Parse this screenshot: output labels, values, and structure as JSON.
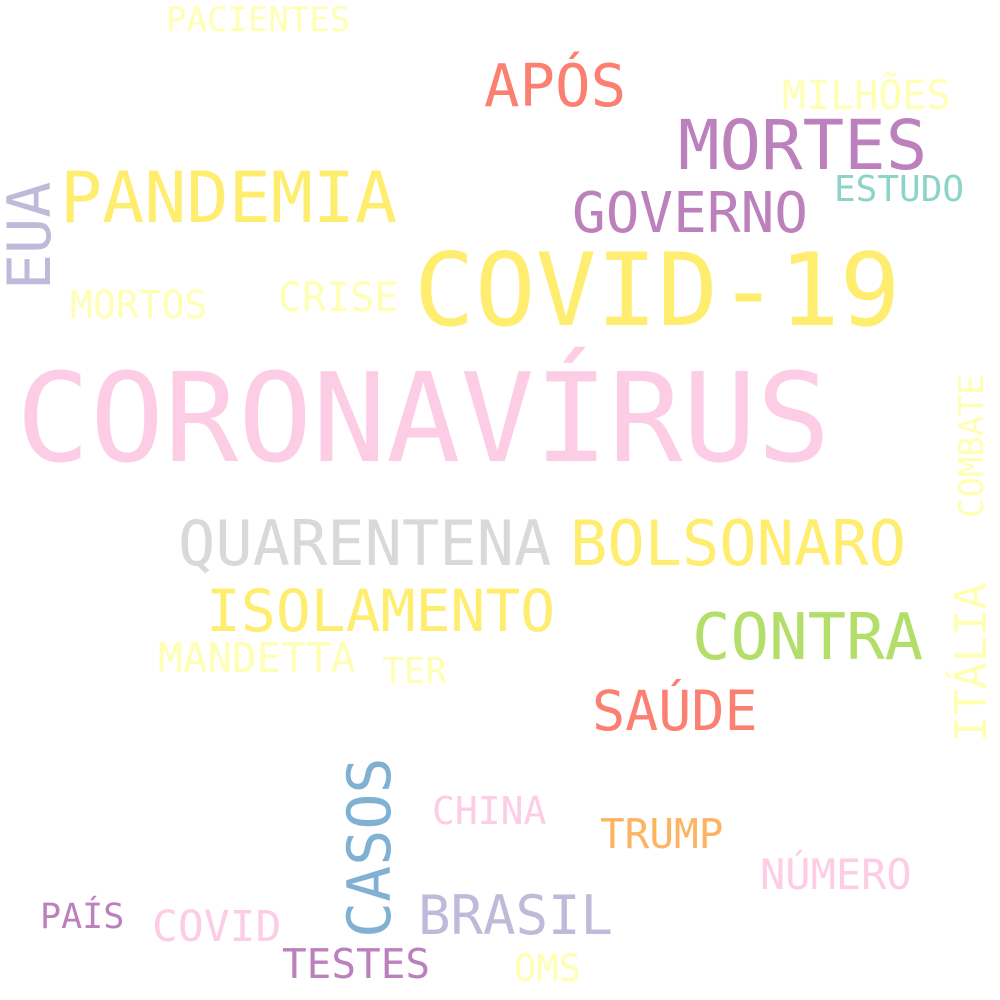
{
  "words": [
    {
      "text": "CORONAVÍRUS",
      "color": "#fccde5"
    },
    {
      "text": "COVID-19",
      "color": "#ffed6f"
    },
    {
      "text": "PANDEMIA",
      "color": "#ffed6f"
    },
    {
      "text": "MORTES",
      "color": "#bc80bd"
    },
    {
      "text": "APÓS",
      "color": "#fb8072"
    },
    {
      "text": "GOVERNO",
      "color": "#bc80bd"
    },
    {
      "text": "QUARENTENA",
      "color": "#d9d9d9"
    },
    {
      "text": "BOLSONARO",
      "color": "#ffed6f"
    },
    {
      "text": "ISOLAMENTO",
      "color": "#ffed6f"
    },
    {
      "text": "CONTRA",
      "color": "#b3de69"
    },
    {
      "text": "SAÚDE",
      "color": "#fb8072"
    },
    {
      "text": "EUA",
      "color": "#bebada"
    },
    {
      "text": "CASOS",
      "color": "#80b1d3"
    },
    {
      "text": "BRASIL",
      "color": "#bebada"
    },
    {
      "text": "ITÁLIA",
      "color": "#ffffb3"
    },
    {
      "text": "COMBATE",
      "color": "#ffffb3"
    },
    {
      "text": "MILHÕES",
      "color": "#ffffb3"
    },
    {
      "text": "ESTUDO",
      "color": "#8dd3c7"
    },
    {
      "text": "PACIENTES",
      "color": "#ffffb3"
    },
    {
      "text": "MORTOS",
      "color": "#ffffb3"
    },
    {
      "text": "CRISE",
      "color": "#ffffb3"
    },
    {
      "text": "MANDETTA",
      "color": "#ffffb3"
    },
    {
      "text": "TER",
      "color": "#ffffb3"
    },
    {
      "text": "CHINA",
      "color": "#fccde5"
    },
    {
      "text": "TRUMP",
      "color": "#fdb462"
    },
    {
      "text": "NÚMERO",
      "color": "#fccde5"
    },
    {
      "text": "PAÍS",
      "color": "#bc80bd"
    },
    {
      "text": "COVID",
      "color": "#fccde5"
    },
    {
      "text": "TESTES",
      "color": "#bc80bd"
    },
    {
      "text": "OMS",
      "color": "#ffffb3"
    }
  ]
}
